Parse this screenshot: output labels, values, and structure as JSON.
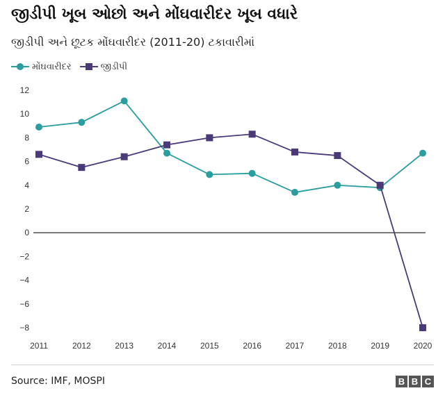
{
  "title": "જીડીપી ખૂબ ઓછો અને મોંઘવારીદર ખૂબ વધારે",
  "subtitle": "જીડીપી અને છૂટક મોંઘવારીદર (2011-20) ટકાવારીમાં",
  "footer": {
    "source": "Source:  IMF,  MOSPI",
    "logo_letters": [
      "B",
      "B",
      "C"
    ]
  },
  "colors": {
    "inflation": "#2a9d9f",
    "gdp": "#4a3a7a",
    "zero_line": "#111111",
    "grid": "#e2e2e2"
  },
  "chart_data": {
    "type": "line",
    "title": "જીડીપી ખૂબ ઓછો અને મોંઘવારીદર ખૂબ વધારે",
    "subtitle": "જીડીપી અને છૂટક મોંઘવારીદર (2011-20) ટકાવારીમાં",
    "xlabel": "",
    "ylabel": "",
    "x": [
      "2011",
      "2012",
      "2013",
      "2014",
      "2015",
      "2016",
      "2017",
      "2018",
      "2019",
      "2020"
    ],
    "ylim": [
      -8,
      12
    ],
    "yticks": [
      12,
      10,
      8,
      6,
      4,
      2,
      0,
      -2,
      -4,
      -6,
      -8
    ],
    "grid": false,
    "legend_position": "top-left",
    "series": [
      {
        "name": "મોંઘવારીદર",
        "marker": "circle",
        "color": "#2a9d9f",
        "values": [
          8.9,
          9.3,
          11.1,
          6.7,
          4.9,
          5.0,
          3.4,
          4.0,
          3.8,
          6.7
        ]
      },
      {
        "name": "જીડીપી",
        "marker": "square",
        "color": "#4a3a7a",
        "values": [
          6.6,
          5.5,
          6.4,
          7.4,
          8.0,
          8.3,
          6.8,
          6.5,
          4.0,
          -8.0
        ]
      }
    ]
  }
}
